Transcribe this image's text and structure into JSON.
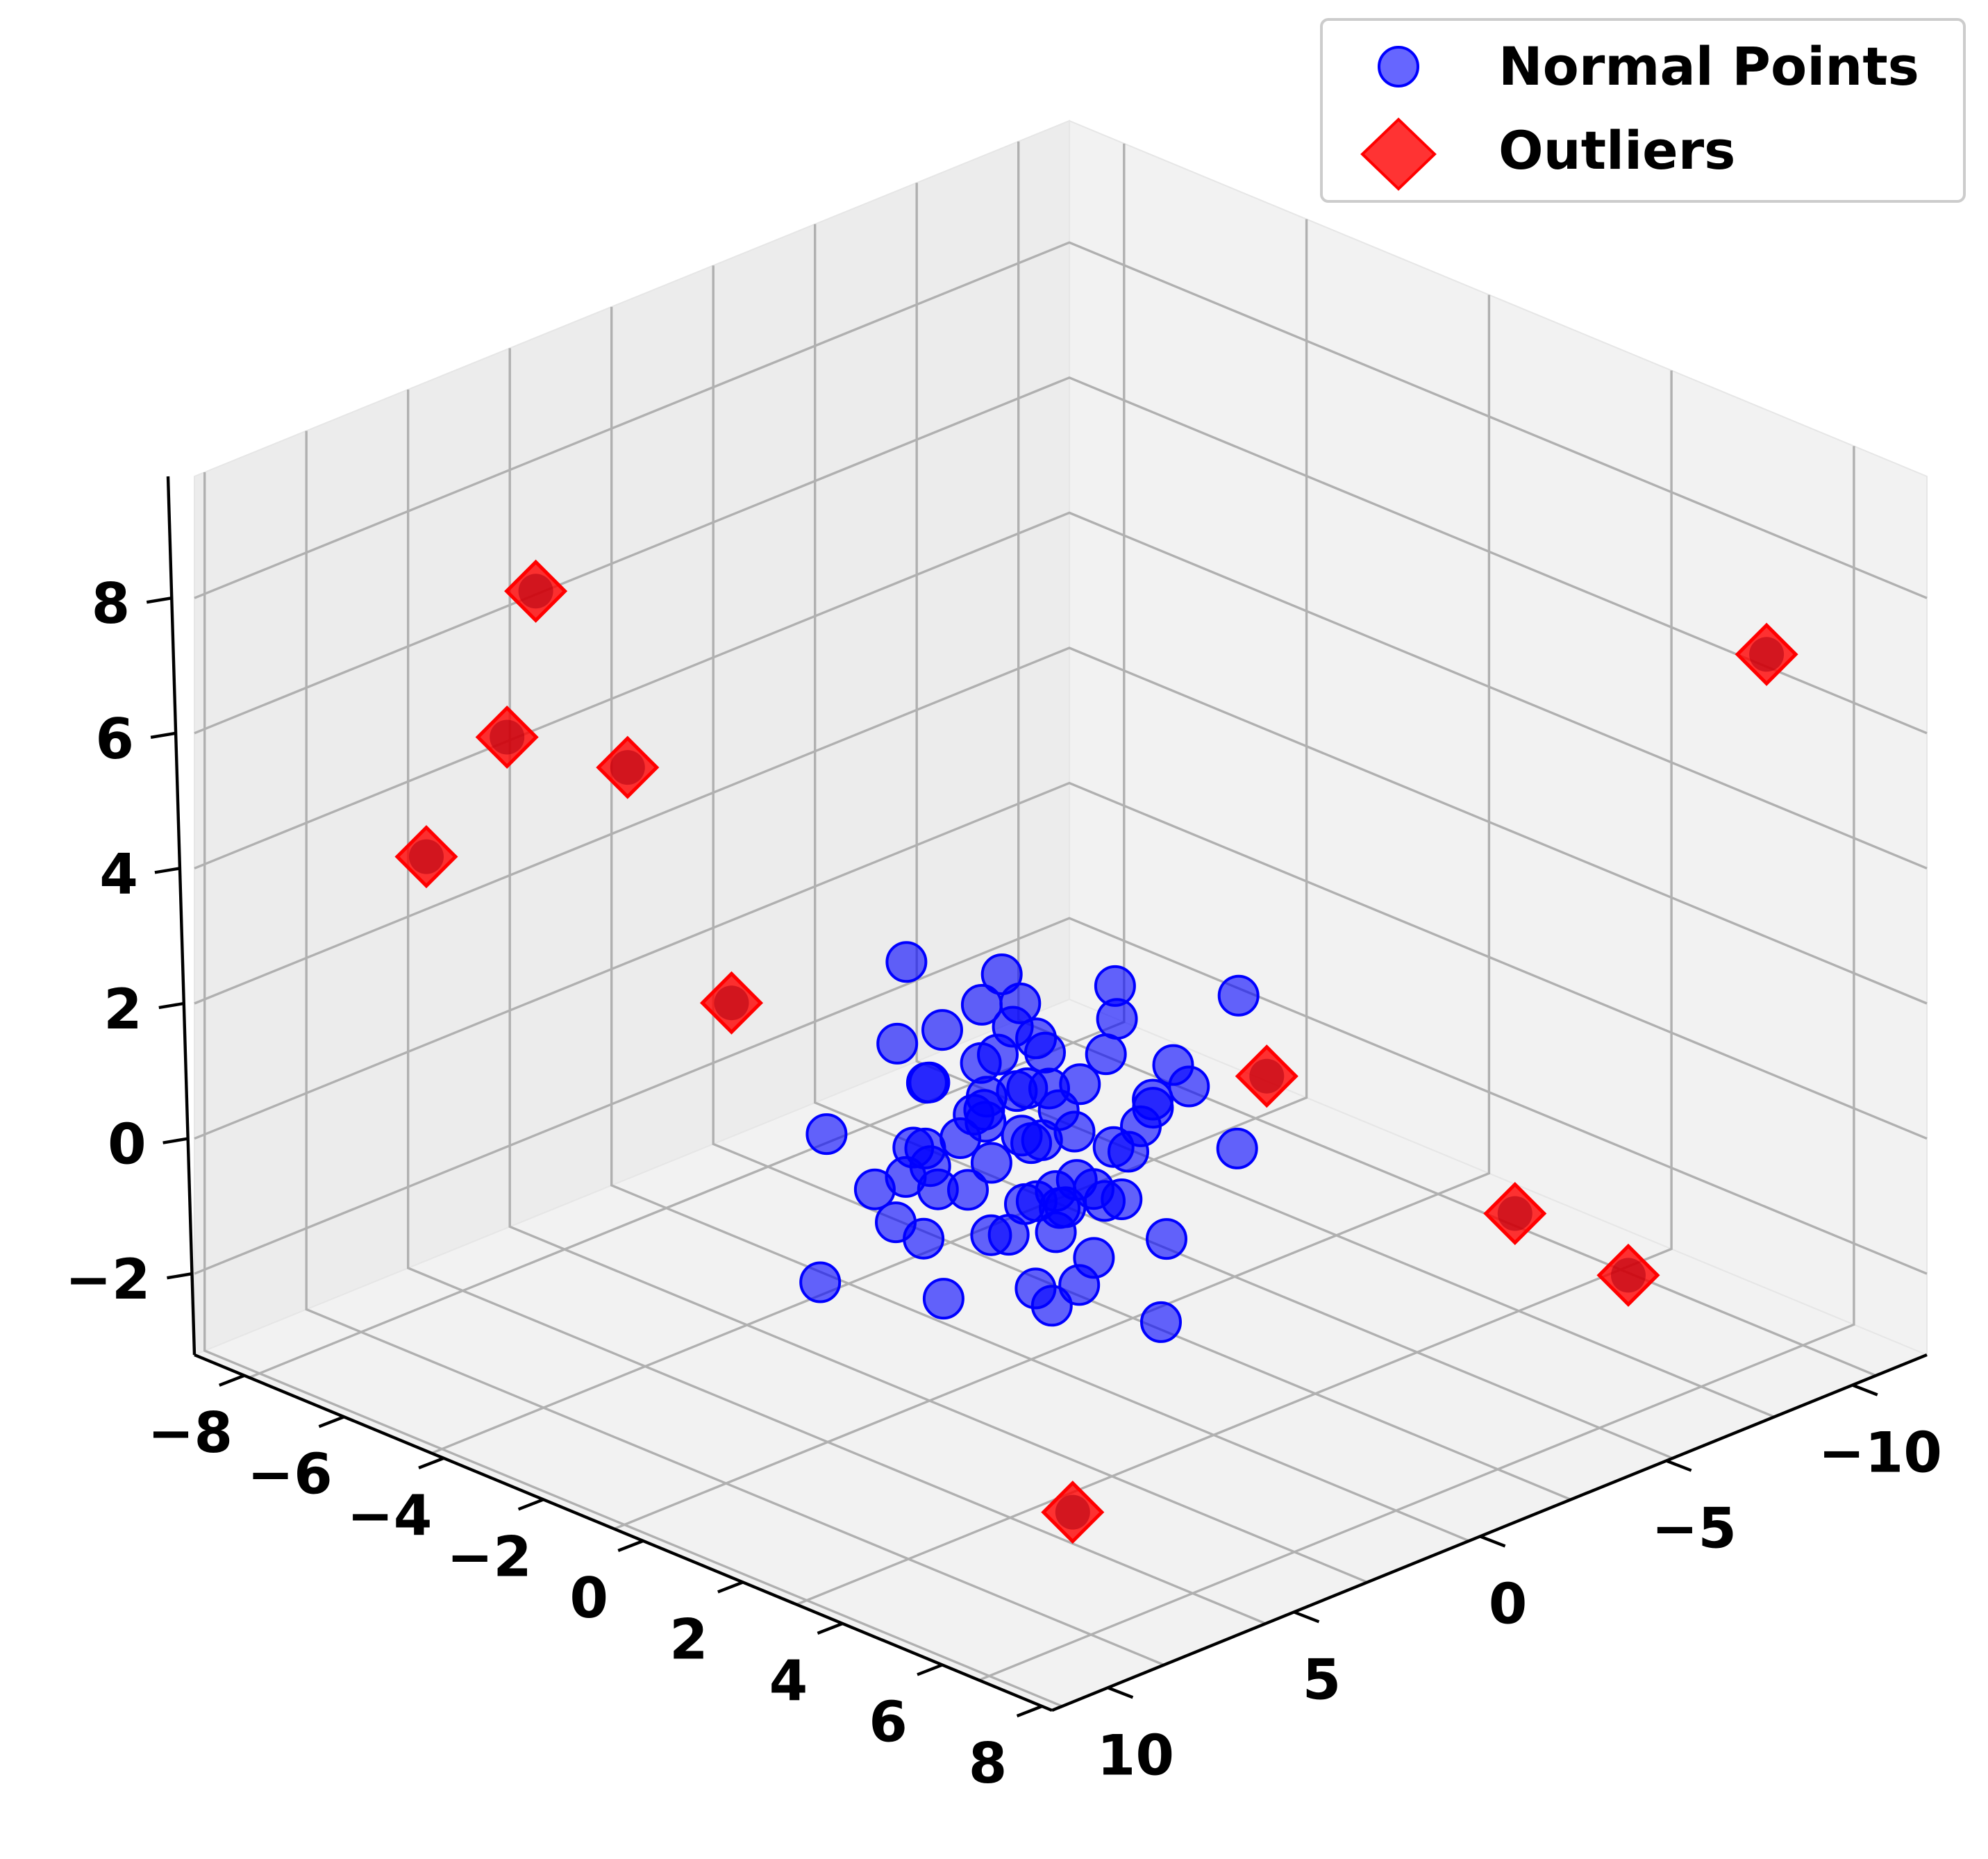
{
  "chart_data": {
    "type": "scatter3d",
    "title": "",
    "xlabel": "",
    "ylabel": "",
    "zlabel": "",
    "xlim": [
      -9,
      8.2
    ],
    "ylim": [
      -12,
      11.5
    ],
    "zlim": [
      -3.2,
      9.8
    ],
    "xticks": [
      -8,
      -6,
      -4,
      -2,
      0,
      2,
      4,
      6,
      8
    ],
    "yticks": [
      -10,
      -5,
      0,
      5,
      10
    ],
    "zticks": [
      -2,
      0,
      2,
      4,
      6,
      8
    ],
    "xtick_labels": [
      "−8",
      "−6",
      "−4",
      "−2",
      "0",
      "2",
      "4",
      "6",
      "8"
    ],
    "ytick_labels": [
      "−10",
      "−5",
      "0",
      "5",
      "10"
    ],
    "ztick_labels": [
      "−2",
      "0",
      "2",
      "4",
      "6",
      "8"
    ],
    "grid": true,
    "legend_position": "top-right",
    "legend": [
      {
        "label": "Normal Points",
        "marker": "circle",
        "color": "#0000ff"
      },
      {
        "label": "Outliers",
        "marker": "diamond",
        "color": "#ff0000"
      }
    ],
    "series": [
      {
        "name": "Normal Points",
        "marker": "circle",
        "color": "#0000ff",
        "points": [
          [
            0.0,
            0.0,
            0.0
          ],
          [
            0.4,
            -0.3,
            0.3
          ],
          [
            -0.5,
            0.4,
            -0.2
          ],
          [
            0.7,
            0.6,
            0.5
          ],
          [
            -0.6,
            -0.5,
            0.8
          ],
          [
            1.1,
            0.2,
            -0.4
          ],
          [
            -1.0,
            0.9,
            0.3
          ],
          [
            0.3,
            -1.2,
            -0.6
          ],
          [
            0.2,
            1.1,
            1.0
          ],
          [
            -0.8,
            -0.9,
            -0.9
          ],
          [
            1.4,
            -0.7,
            0.9
          ],
          [
            -1.3,
            0.1,
            -1.1
          ],
          [
            0.9,
            1.3,
            -0.7
          ],
          [
            -0.2,
            -0.1,
            1.3
          ],
          [
            0.5,
            0.4,
            -1.3
          ],
          [
            -1.1,
            1.4,
            0.9
          ],
          [
            1.6,
            1.0,
            0.2
          ],
          [
            -1.6,
            -1.1,
            0.4
          ],
          [
            0.1,
            1.8,
            -0.3
          ],
          [
            -0.4,
            -1.7,
            0.2
          ],
          [
            1.2,
            -1.5,
            -0.2
          ],
          [
            -1.9,
            0.6,
            0.6
          ],
          [
            0.8,
            -0.2,
            1.6
          ],
          [
            -0.7,
            0.3,
            -1.6
          ],
          [
            1.9,
            0.3,
            -0.9
          ],
          [
            -1.4,
            -0.4,
            1.5
          ],
          [
            0.6,
            1.6,
            1.5
          ],
          [
            -0.3,
            -1.3,
            -1.5
          ],
          [
            1.0,
            -1.0,
            1.3
          ],
          [
            -1.2,
            1.0,
            -1.3
          ],
          [
            0.3,
            0.8,
            0.6
          ],
          [
            -0.9,
            0.5,
            0.1
          ],
          [
            1.5,
            0.7,
            1.2
          ],
          [
            -0.1,
            -0.8,
            -0.8
          ],
          [
            0.8,
            -0.5,
            -1.0
          ],
          [
            -0.5,
            1.2,
            1.3
          ],
          [
            2.2,
            -0.3,
            0.4
          ],
          [
            -2.3,
            0.2,
            -0.5
          ],
          [
            0.4,
            2.3,
            0.5
          ],
          [
            -0.2,
            -2.2,
            -0.4
          ],
          [
            1.3,
            1.9,
            -1.2
          ],
          [
            -1.5,
            -1.8,
            1.1
          ],
          [
            2.0,
            -1.7,
            0.7
          ],
          [
            -2.0,
            1.6,
            -0.8
          ],
          [
            0.0,
            0.3,
            2.0
          ],
          [
            0.2,
            -0.4,
            -2.0
          ],
          [
            1.7,
            1.3,
            1.7
          ],
          [
            -1.8,
            -1.2,
            -1.7
          ],
          [
            2.5,
            0.8,
            -0.1
          ],
          [
            -2.6,
            -0.7,
            0.2
          ],
          [
            0.6,
            2.6,
            -0.9
          ],
          [
            -0.6,
            -2.5,
            0.9
          ],
          [
            1.1,
            -2.1,
            -1.6
          ],
          [
            -1.0,
            2.2,
            1.7
          ],
          [
            2.8,
            -1.0,
            1.0
          ],
          [
            -2.7,
            1.1,
            -1.2
          ],
          [
            0.9,
            0.1,
            2.3
          ],
          [
            -0.8,
            -0.2,
            -2.3
          ],
          [
            1.8,
            -2.4,
            1.9
          ],
          [
            -1.9,
            2.5,
            -2.0
          ],
          [
            3.0,
            1.6,
            -1.5
          ],
          [
            -3.0,
            -1.5,
            1.6
          ],
          [
            0.3,
            3.0,
            2.1
          ],
          [
            -0.4,
            -3.0,
            -2.1
          ],
          [
            2.3,
            2.4,
            0.3
          ],
          [
            -2.4,
            -2.3,
            -0.3
          ],
          [
            1.4,
            -3.2,
            0.6
          ],
          [
            -1.3,
            3.1,
            -0.6
          ],
          [
            3.3,
            -2.2,
            -0.8
          ],
          [
            -3.3,
            2.3,
            0.8
          ]
        ]
      },
      {
        "name": "Outliers",
        "marker": "diamond",
        "color": "#ff0000",
        "points": [
          [
            4.0,
            8.0,
            7.6
          ],
          [
            6.5,
            2.0,
            7.1
          ],
          [
            6.0,
            6.0,
            6.5
          ],
          [
            4.0,
            11.0,
            3.0
          ],
          [
            -2.0,
            11.0,
            -1.0
          ],
          [
            -6.0,
            -8.0,
            -2.0
          ],
          [
            -7.0,
            -3.5,
            -2.4
          ],
          [
            -8.0,
            -9.0,
            6.8
          ],
          [
            6.0,
            -9.5,
            -1.5
          ],
          [
            -7.5,
            4.0,
            -2.2
          ]
        ]
      }
    ]
  }
}
